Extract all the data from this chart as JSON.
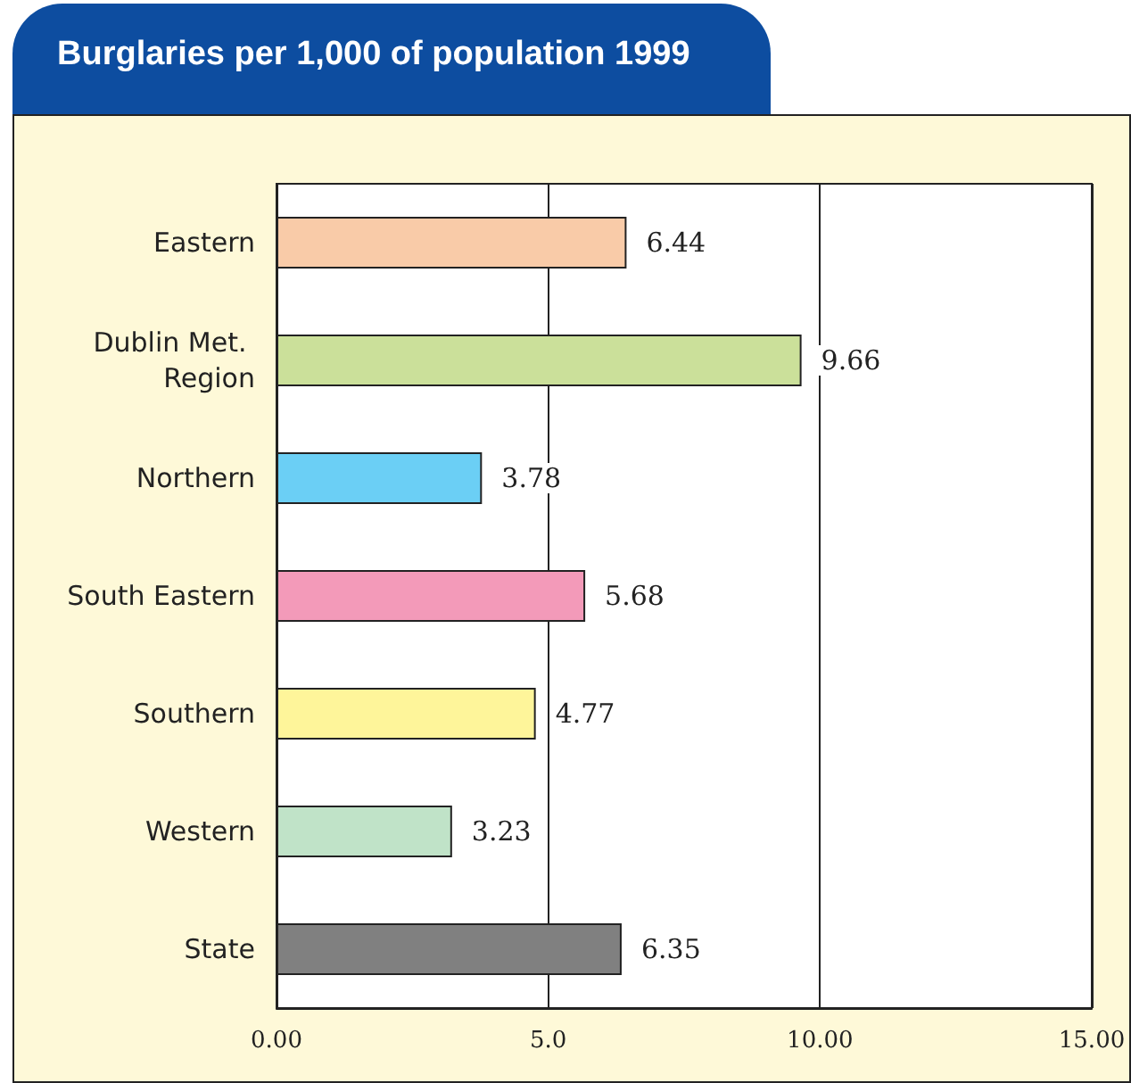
{
  "chart_data": {
    "type": "bar",
    "orientation": "horizontal",
    "title": "Burglaries per 1,000 of population 1999",
    "categories": [
      "Eastern",
      "Dublin Met. Region",
      "Northern",
      "South Eastern",
      "Southern",
      "Western",
      "State"
    ],
    "values": [
      6.44,
      9.66,
      3.78,
      5.68,
      4.77,
      3.23,
      6.35
    ],
    "colors": [
      "#f9cba8",
      "#cbe09a",
      "#6bcff5",
      "#f39ab9",
      "#fef59a",
      "#c0e3c8",
      "#808080"
    ],
    "xlim": [
      0,
      15
    ],
    "xticks": [
      {
        "value": 0,
        "label": "0.00"
      },
      {
        "value": 5,
        "label": "5.0"
      },
      {
        "value": 10,
        "label": "10.00"
      },
      {
        "value": 15,
        "label": "15.00"
      }
    ],
    "grid": "x",
    "data_labels": true
  }
}
